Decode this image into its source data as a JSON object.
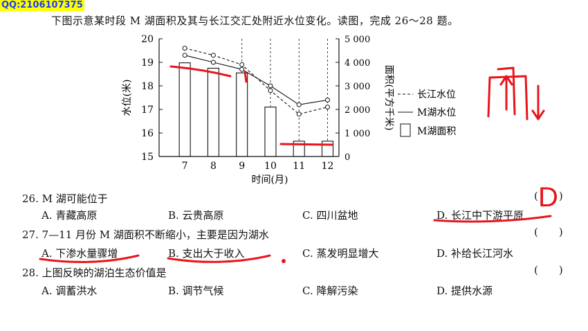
{
  "watermark": "QQ:2106107375",
  "intro": "下图示意某时段 M 湖面积及其与长江交汇处附近水位变化。读图，完成 26～28 题。",
  "chart_data": {
    "type": "bar",
    "xlabel": "时间(月)",
    "ylabel_left": "水位(米)",
    "ylabel_right": "面积(平方千米)",
    "categories": [
      "7",
      "8",
      "9",
      "10",
      "11",
      "12"
    ],
    "left_ticks": [
      "20",
      "19",
      "18",
      "17",
      "16",
      "15"
    ],
    "right_ticks": [
      "5 000",
      "4 000",
      "3 000",
      "2 000",
      "1 000",
      "0"
    ],
    "ylim_left": [
      15,
      20
    ],
    "ylim_right": [
      0,
      5000
    ],
    "series": [
      {
        "name": "M湖面积",
        "axis": "right",
        "values": [
          3980,
          3750,
          3550,
          2100,
          650,
          650
        ]
      },
      {
        "name": "长江水位",
        "axis": "left",
        "values": [
          19.6,
          19.3,
          18.9,
          17.8,
          16.8,
          17.1
        ]
      },
      {
        "name": "M湖水位",
        "axis": "left",
        "values": [
          19.3,
          19.0,
          18.7,
          18.0,
          17.2,
          17.4
        ]
      }
    ],
    "legend": [
      "长江水位",
      "M湖水位",
      "M湖面积"
    ],
    "legend_position": "right"
  },
  "questions": [
    {
      "stem": "26. M 湖可能位于",
      "paren": "(　　)",
      "options": [
        "A. 青藏高原",
        "B. 云贵高原",
        "C. 四川盆地",
        "D. 长江中下游平原"
      ]
    },
    {
      "stem": "27. 7—11 月份 M 湖面积不断缩小，主要是因为湖水",
      "paren": "(　　)",
      "options": [
        "A. 下渗水量骤增",
        "B. 支出大于收入",
        "C. 蒸发明显增大",
        "D. 补给长江河水"
      ]
    },
    {
      "stem": "28. 上图反映的湖泊生态价值是",
      "paren": "(　　)",
      "options": [
        "A. 调蓄洪水",
        "B. 调节气候",
        "C. 降解污染",
        "D. 提供水源"
      ]
    }
  ],
  "handwriting": {
    "answer_26": "D"
  },
  "colors": {
    "ink": "#e8141a",
    "watermark_bg": "#ffff00",
    "watermark_text": "#1a3cff"
  }
}
